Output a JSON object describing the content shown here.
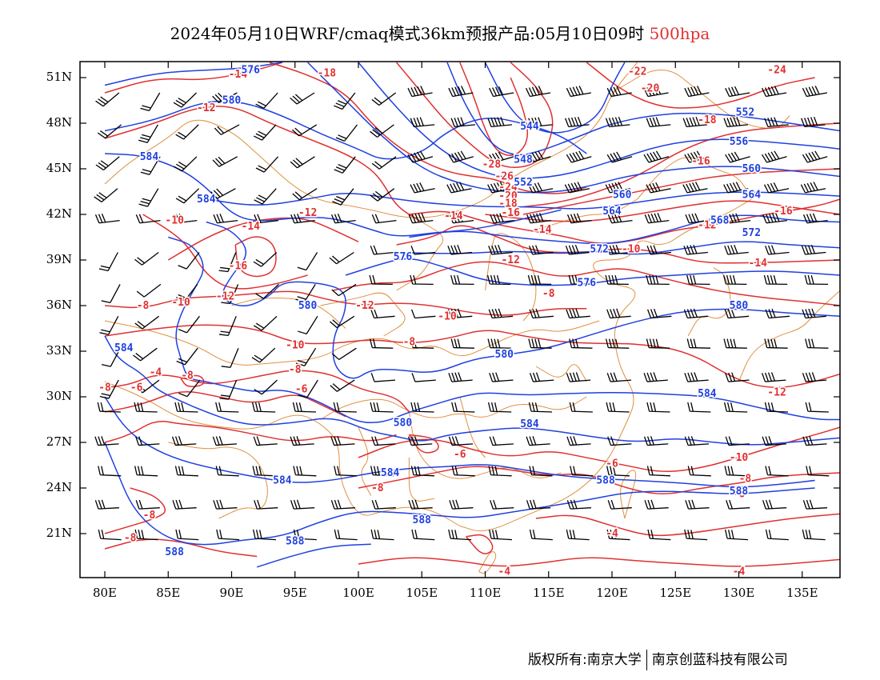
{
  "title": {
    "main": "2024年05月10日WRF/cmaq模式36km预报产品:05月10日09时",
    "level": "500hpa",
    "level_color": "#e03030"
  },
  "map": {
    "lat_labels": [
      "51N",
      "48N",
      "45N",
      "42N",
      "39N",
      "36N",
      "33N",
      "30N",
      "27N",
      "24N",
      "21N"
    ],
    "lon_labels": [
      "80E",
      "85E",
      "90E",
      "95E",
      "100E",
      "105E",
      "110E",
      "115E",
      "120E",
      "125E",
      "130E",
      "135E"
    ],
    "colors": {
      "geopotential_height": "#2040e0",
      "temperature": "#e03030",
      "boundaries": "#e09040",
      "wind_barbs": "#000000"
    },
    "height_labels": [
      {
        "text": "576",
        "lon": 91.5,
        "lat": 51.5
      },
      {
        "text": "580",
        "lon": 90.0,
        "lat": 49.5
      },
      {
        "text": "584",
        "lon": 83.5,
        "lat": 45.8
      },
      {
        "text": "584",
        "lon": 88.0,
        "lat": 43.0
      },
      {
        "text": "544",
        "lon": 113.5,
        "lat": 47.8
      },
      {
        "text": "548",
        "lon": 113.0,
        "lat": 45.6
      },
      {
        "text": "552",
        "lon": 113.0,
        "lat": 44.1
      },
      {
        "text": "552",
        "lon": 130.5,
        "lat": 48.7
      },
      {
        "text": "556",
        "lon": 130.0,
        "lat": 46.8
      },
      {
        "text": "560",
        "lon": 131.0,
        "lat": 45.0
      },
      {
        "text": "564",
        "lon": 131.0,
        "lat": 43.3
      },
      {
        "text": "568",
        "lon": 128.5,
        "lat": 41.6
      },
      {
        "text": "572",
        "lon": 131.0,
        "lat": 40.8
      },
      {
        "text": "560",
        "lon": 120.8,
        "lat": 43.3
      },
      {
        "text": "564",
        "lon": 120.0,
        "lat": 42.2
      },
      {
        "text": "572",
        "lon": 119.0,
        "lat": 39.7
      },
      {
        "text": "576",
        "lon": 103.5,
        "lat": 39.2
      },
      {
        "text": "576",
        "lon": 118.0,
        "lat": 37.5
      },
      {
        "text": "580",
        "lon": 96.0,
        "lat": 36.0
      },
      {
        "text": "580",
        "lon": 130.0,
        "lat": 36.0
      },
      {
        "text": "580",
        "lon": 111.5,
        "lat": 32.8
      },
      {
        "text": "584",
        "lon": 81.5,
        "lat": 33.2
      },
      {
        "text": "584",
        "lon": 127.5,
        "lat": 30.2
      },
      {
        "text": "584",
        "lon": 113.5,
        "lat": 28.2
      },
      {
        "text": "580",
        "lon": 103.5,
        "lat": 28.3
      },
      {
        "text": "584",
        "lon": 102.5,
        "lat": 25.0
      },
      {
        "text": "584",
        "lon": 94.0,
        "lat": 24.5
      },
      {
        "text": "588",
        "lon": 119.5,
        "lat": 24.5
      },
      {
        "text": "588",
        "lon": 130.0,
        "lat": 23.8
      },
      {
        "text": "588",
        "lon": 105.0,
        "lat": 21.9
      },
      {
        "text": "588",
        "lon": 95.0,
        "lat": 20.5
      },
      {
        "text": "588",
        "lon": 85.5,
        "lat": 19.8
      }
    ],
    "temperature_labels": [
      {
        "text": "-14",
        "lon": 90.5,
        "lat": 51.2
      },
      {
        "text": "-18",
        "lon": 97.5,
        "lat": 51.3
      },
      {
        "text": "-12",
        "lon": 88.0,
        "lat": 49.0
      },
      {
        "text": "-22",
        "lon": 122.0,
        "lat": 51.4
      },
      {
        "text": "-20",
        "lon": 123.0,
        "lat": 50.3
      },
      {
        "text": "-24",
        "lon": 133.0,
        "lat": 51.5
      },
      {
        "text": "-18",
        "lon": 127.5,
        "lat": 48.2
      },
      {
        "text": "-16",
        "lon": 127.0,
        "lat": 45.5
      },
      {
        "text": "-16",
        "lon": 133.5,
        "lat": 42.2
      },
      {
        "text": "-28",
        "lon": 110.5,
        "lat": 45.3
      },
      {
        "text": "-26",
        "lon": 111.5,
        "lat": 44.5
      },
      {
        "text": "-24",
        "lon": 111.8,
        "lat": 43.8
      },
      {
        "text": "-20",
        "lon": 111.8,
        "lat": 43.2
      },
      {
        "text": "-18",
        "lon": 111.8,
        "lat": 42.7
      },
      {
        "text": "-16",
        "lon": 112.0,
        "lat": 42.1
      },
      {
        "text": "-14",
        "lon": 107.5,
        "lat": 41.9
      },
      {
        "text": "-14",
        "lon": 114.5,
        "lat": 41.0
      },
      {
        "text": "-12",
        "lon": 127.5,
        "lat": 41.3
      },
      {
        "text": "-10",
        "lon": 121.5,
        "lat": 39.7
      },
      {
        "text": "-14",
        "lon": 131.5,
        "lat": 38.8
      },
      {
        "text": "-12",
        "lon": 112.0,
        "lat": 39.0
      },
      {
        "text": "-12",
        "lon": 96.0,
        "lat": 42.1
      },
      {
        "text": "-14",
        "lon": 91.5,
        "lat": 41.2
      },
      {
        "text": "-10",
        "lon": 85.5,
        "lat": 41.6
      },
      {
        "text": "-16",
        "lon": 90.5,
        "lat": 38.6
      },
      {
        "text": "-12",
        "lon": 89.5,
        "lat": 36.6
      },
      {
        "text": "-10",
        "lon": 86.0,
        "lat": 36.2
      },
      {
        "text": "-8",
        "lon": 83.0,
        "lat": 36.0
      },
      {
        "text": "-12",
        "lon": 100.5,
        "lat": 36.0
      },
      {
        "text": "-10",
        "lon": 107.0,
        "lat": 35.3
      },
      {
        "text": "-8",
        "lon": 115.0,
        "lat": 36.8
      },
      {
        "text": "-10",
        "lon": 95.0,
        "lat": 33.4
      },
      {
        "text": "-8",
        "lon": 104.0,
        "lat": 33.6
      },
      {
        "text": "-8",
        "lon": 95.0,
        "lat": 31.8
      },
      {
        "text": "-8",
        "lon": 86.5,
        "lat": 31.4
      },
      {
        "text": "-4",
        "lon": 84.0,
        "lat": 31.6
      },
      {
        "text": "-6",
        "lon": 82.5,
        "lat": 30.6
      },
      {
        "text": "-6",
        "lon": 95.5,
        "lat": 30.5
      },
      {
        "text": "-8",
        "lon": 80.0,
        "lat": 30.6
      },
      {
        "text": "-12",
        "lon": 133.0,
        "lat": 30.3
      },
      {
        "text": "-10",
        "lon": 130.0,
        "lat": 26.0
      },
      {
        "text": "-8",
        "lon": 130.5,
        "lat": 24.6
      },
      {
        "text": "-6",
        "lon": 130.0,
        "lat": 23.6
      },
      {
        "text": "-6",
        "lon": 108.0,
        "lat": 26.2
      },
      {
        "text": "-6",
        "lon": 120.0,
        "lat": 25.6
      },
      {
        "text": "-8",
        "lon": 101.5,
        "lat": 24.0
      },
      {
        "text": "-8",
        "lon": 83.5,
        "lat": 22.2
      },
      {
        "text": "-8",
        "lon": 82.0,
        "lat": 20.7
      },
      {
        "text": "-4",
        "lon": 120.0,
        "lat": 21.0
      },
      {
        "text": "-4",
        "lon": 111.5,
        "lat": 18.5
      },
      {
        "text": "-4",
        "lon": 130.0,
        "lat": 18.5
      }
    ]
  },
  "footer": {
    "left": "版权所有:南京大学",
    "right": "南京创蓝科技有限公司"
  }
}
